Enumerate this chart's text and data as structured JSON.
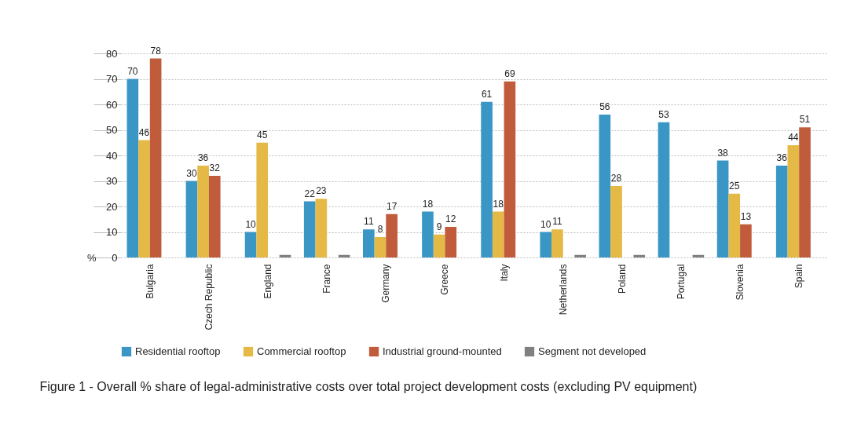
{
  "chart_data": {
    "type": "bar",
    "title": "Figure 1 - Overall % share of legal-administrative costs over total project development costs (excluding PV equipment)",
    "ylabel": "%",
    "categories": [
      "Bulgaria",
      "Czech Republic",
      "England",
      "France",
      "Germany",
      "Greece",
      "Italy",
      "Netherlands",
      "Poland",
      "Portugal",
      "Slovenia",
      "Spain"
    ],
    "series": [
      {
        "name": "Residential rooftop",
        "color": "#3a97c5",
        "values": [
          70,
          30,
          10,
          22,
          11,
          18,
          61,
          10,
          56,
          53,
          38,
          36
        ],
        "value_labels": [
          "70",
          "30",
          "10",
          "22",
          "11",
          "18",
          "61",
          "10",
          "56",
          "53",
          "38",
          "36"
        ]
      },
      {
        "name": "Commercial rooftop",
        "color": "#e4b945",
        "values": [
          46,
          36,
          45,
          23,
          8,
          9,
          18,
          11,
          28,
          null,
          25,
          44
        ],
        "value_labels": [
          "46",
          "36",
          "45",
          "23",
          "8",
          "9",
          "18",
          "11",
          "28",
          null,
          "25",
          "44"
        ]
      },
      {
        "name": "Industrial ground-mounted",
        "color": "#c05c3b",
        "values": [
          78,
          32,
          null,
          null,
          17,
          12,
          69,
          null,
          null,
          null,
          13,
          51
        ],
        "value_labels": [
          "78",
          "32",
          null,
          null,
          "17",
          "12",
          "69",
          null,
          null,
          null,
          "13",
          "51"
        ]
      },
      {
        "name": "Segment not developed",
        "color": "#808080",
        "values": [
          null,
          null,
          1,
          1,
          null,
          null,
          null,
          1,
          1,
          1,
          null,
          null
        ]
      }
    ],
    "ylim": [
      0,
      80
    ],
    "yticks": [
      0,
      10,
      20,
      30,
      40,
      50,
      60,
      70,
      80
    ],
    "grid": "y",
    "legend": "bottom"
  }
}
